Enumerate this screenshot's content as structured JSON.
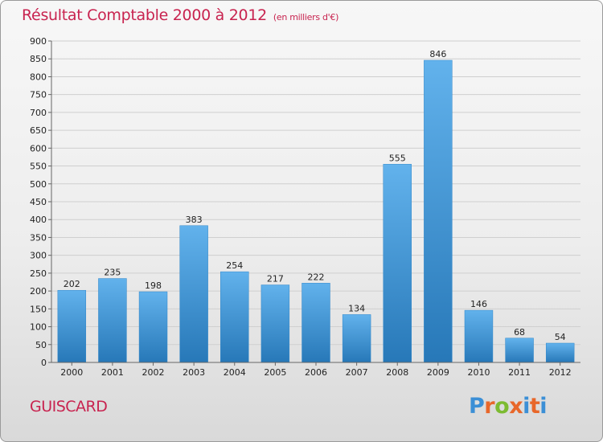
{
  "title": "Résultat Comptable 2000 à 2012",
  "subtitle": "(en milliers d'€)",
  "commune": "GUISCARD",
  "logo": {
    "text": "Proxiti",
    "letter_colors": [
      "#3b8fd6",
      "#e8672a",
      "#7cbb31",
      "#e8672a",
      "#3b8fd6",
      "#e8672a",
      "#3b8fd6"
    ]
  },
  "colors": {
    "title": "#c8234f",
    "bar_top": "#62b2ec",
    "bar_bottom": "#2778b8",
    "grid": "#cfcfcf",
    "axis": "#666666"
  },
  "chart_data": {
    "type": "bar",
    "title": "Résultat Comptable 2000 à 2012",
    "subtitle": "(en milliers d'€)",
    "categories": [
      "2000",
      "2001",
      "2002",
      "2003",
      "2004",
      "2005",
      "2006",
      "2007",
      "2008",
      "2009",
      "2010",
      "2011",
      "2012"
    ],
    "values": [
      202,
      235,
      198,
      383,
      254,
      217,
      222,
      134,
      555,
      846,
      146,
      68,
      54
    ],
    "ylim": [
      0,
      900
    ],
    "yticks": [
      0,
      50,
      100,
      150,
      200,
      250,
      300,
      350,
      400,
      450,
      500,
      550,
      600,
      650,
      700,
      750,
      800,
      850,
      900
    ],
    "grid": true,
    "data_labels": true
  }
}
